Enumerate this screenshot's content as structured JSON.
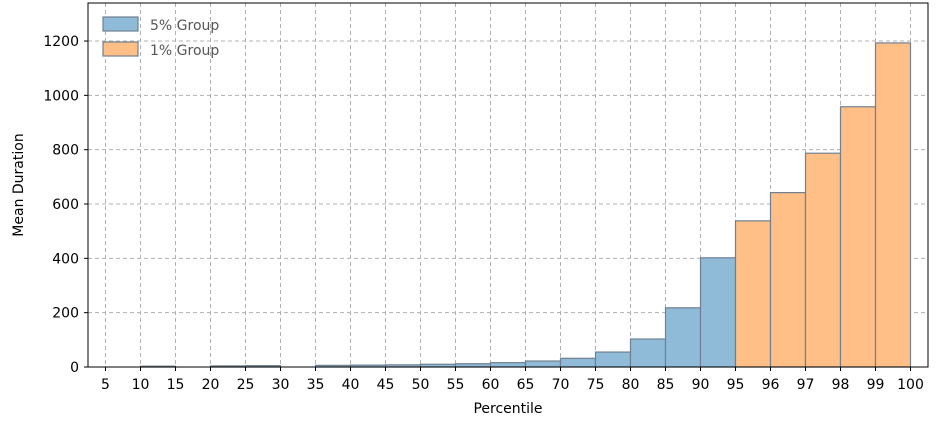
{
  "chart_data": {
    "type": "bar",
    "xlabel": "Percentile",
    "ylabel": "Mean Duration",
    "ylim": [
      0,
      1340
    ],
    "y_ticks": [
      0,
      200,
      400,
      600,
      800,
      1000,
      1200
    ],
    "grid": true,
    "legend_position": "top-left",
    "x_tick_labels": [
      "5",
      "10",
      "15",
      "20",
      "25",
      "30",
      "35",
      "40",
      "45",
      "50",
      "55",
      "60",
      "65",
      "70",
      "75",
      "80",
      "85",
      "90",
      "95",
      "96",
      "97",
      "98",
      "99",
      "100"
    ],
    "series": [
      {
        "name": "5% Group",
        "color": "#8fbbd9",
        "bins": [
          {
            "from": "5",
            "to": "10",
            "value": 0
          },
          {
            "from": "10",
            "to": "15",
            "value": 3
          },
          {
            "from": "15",
            "to": "20",
            "value": 0
          },
          {
            "from": "20",
            "to": "25",
            "value": 4
          },
          {
            "from": "25",
            "to": "30",
            "value": 5
          },
          {
            "from": "30",
            "to": "35",
            "value": 0
          },
          {
            "from": "35",
            "to": "40",
            "value": 6
          },
          {
            "from": "40",
            "to": "45",
            "value": 7
          },
          {
            "from": "45",
            "to": "50",
            "value": 8
          },
          {
            "from": "50",
            "to": "55",
            "value": 10
          },
          {
            "from": "55",
            "to": "60",
            "value": 12
          },
          {
            "from": "60",
            "to": "65",
            "value": 16
          },
          {
            "from": "65",
            "to": "70",
            "value": 22
          },
          {
            "from": "70",
            "to": "75",
            "value": 32
          },
          {
            "from": "75",
            "to": "80",
            "value": 55
          },
          {
            "from": "80",
            "to": "85",
            "value": 103
          },
          {
            "from": "85",
            "to": "90",
            "value": 218
          },
          {
            "from": "90",
            "to": "95",
            "value": 402
          }
        ]
      },
      {
        "name": "1% Group",
        "color": "#ffbf86",
        "bins": [
          {
            "from": "95",
            "to": "96",
            "value": 538
          },
          {
            "from": "96",
            "to": "97",
            "value": 642
          },
          {
            "from": "97",
            "to": "98",
            "value": 787
          },
          {
            "from": "98",
            "to": "99",
            "value": 958
          },
          {
            "from": "99",
            "to": "100",
            "value": 1193
          }
        ]
      }
    ]
  }
}
